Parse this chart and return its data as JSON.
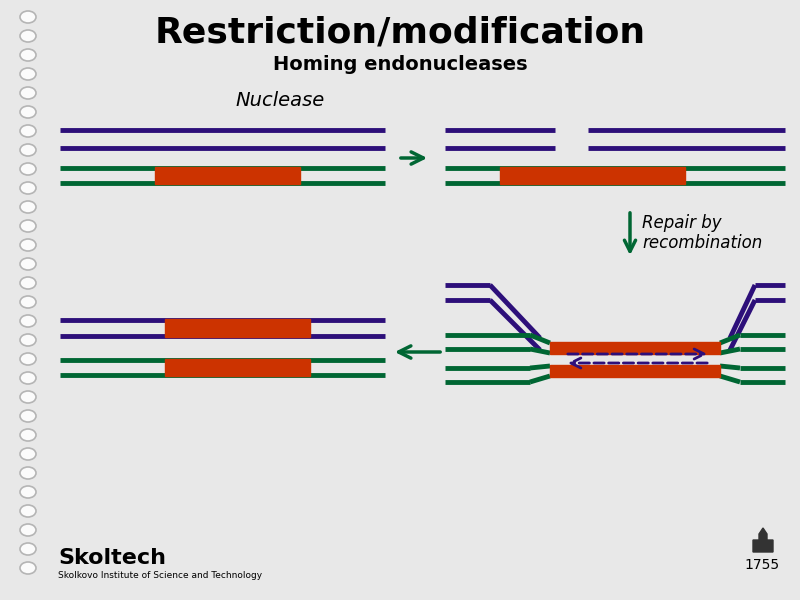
{
  "title": "Restriction/modification",
  "subtitle": "Homing endonucleases",
  "bg_color": "#e8e8e8",
  "dna_purple": "#2d0f7a",
  "dna_green": "#006633",
  "insert_orange": "#cc3300",
  "arrow_green": "#006633",
  "arrow_purple": "#2d0f7a",
  "nuclease_label": "Nuclease",
  "repair_label": "Repair by\nrecombination",
  "spiral_color": "#aaaaaa"
}
